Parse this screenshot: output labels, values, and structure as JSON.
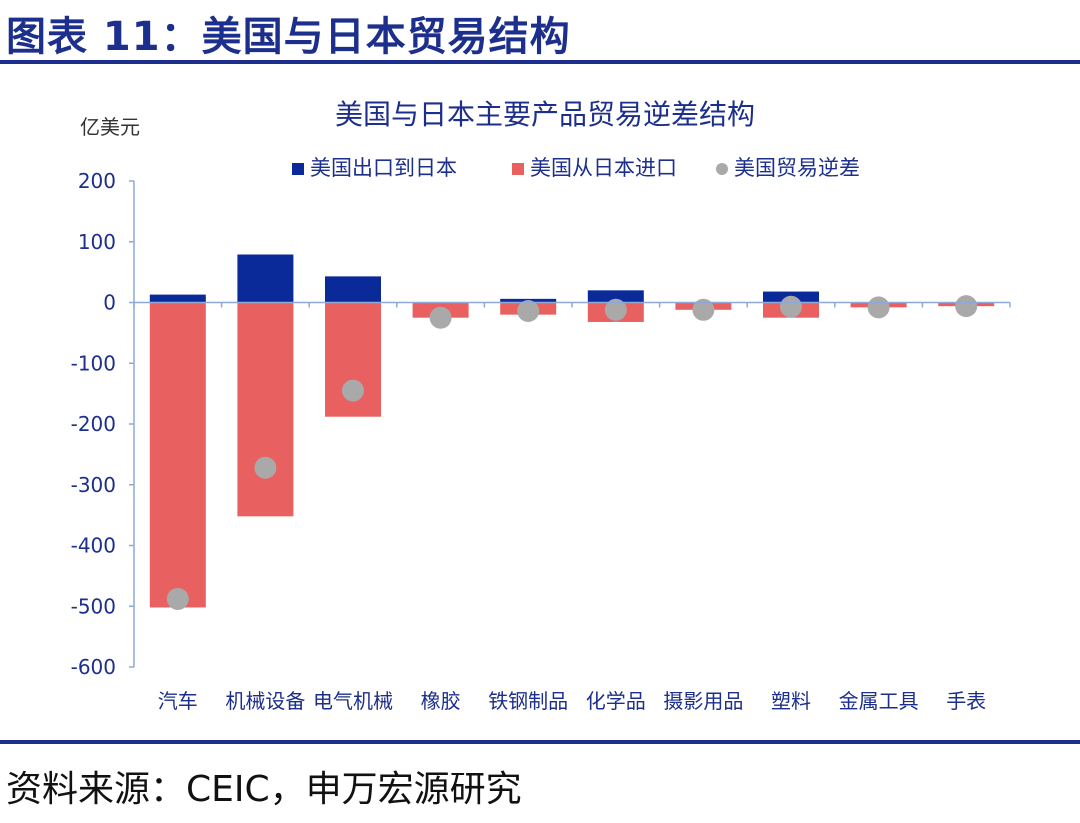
{
  "figure": {
    "title": "图表 11：美国与日本贸易结构",
    "source": "资料来源：CEIC，申万宏源研究"
  },
  "chart_data": {
    "type": "bar",
    "title": "美国与日本主要产品贸易逆差结构",
    "unit_label": "亿美元",
    "categories": [
      "汽车",
      "机械设备",
      "电气机械",
      "橡胶",
      "铁钢制品",
      "化学品",
      "摄影用品",
      "塑料",
      "金属工具",
      "手表"
    ],
    "series": [
      {
        "name": "美国出口到日本",
        "kind": "bar",
        "color": "#0a2a9a",
        "values": [
          13,
          79,
          43,
          0,
          6,
          20,
          0,
          18,
          0,
          0
        ]
      },
      {
        "name": "美国从日本进口",
        "kind": "bar",
        "color": "#e8605f",
        "values": [
          -502,
          -352,
          -188,
          -25,
          -20,
          -32,
          -12,
          -25,
          -8,
          -6
        ]
      },
      {
        "name": "美国贸易逆差",
        "kind": "dot",
        "color": "#a9a9a9",
        "values": [
          -488,
          -272,
          -145,
          -25,
          -14,
          -12,
          -12,
          -7,
          -8,
          -6
        ]
      }
    ],
    "ylim": [
      -600,
      200
    ],
    "yticks": [
      200,
      100,
      0,
      -100,
      -200,
      -300,
      -400,
      -500,
      -600
    ],
    "legend": "top"
  }
}
